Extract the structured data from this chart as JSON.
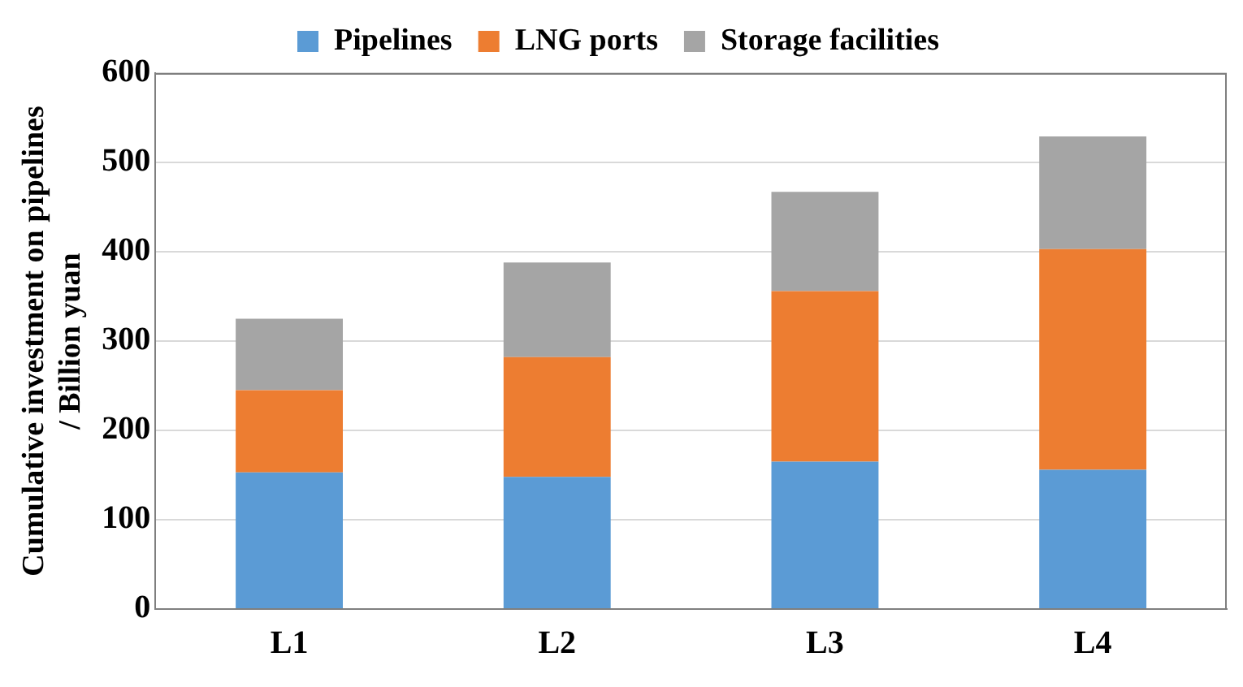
{
  "chart_data": {
    "type": "bar",
    "stacked": true,
    "ylabel": "Cumulative investment on pipelines / Billion yuan",
    "categories": [
      "L1",
      "L2",
      "L3",
      "L4"
    ],
    "series": [
      {
        "name": "Pipelines",
        "color": "#5b9bd5",
        "values": [
          153,
          148,
          165,
          156
        ]
      },
      {
        "name": "LNG ports",
        "color": "#ed7d31",
        "values": [
          92,
          134,
          191,
          247
        ]
      },
      {
        "name": "Storage facilities",
        "color": "#a5a5a5",
        "values": [
          80,
          106,
          111,
          126
        ]
      }
    ],
    "ylim": [
      0,
      600
    ],
    "yticks": [
      0,
      100,
      200,
      300,
      400,
      500,
      600
    ],
    "grid": "y",
    "legend": "top"
  }
}
